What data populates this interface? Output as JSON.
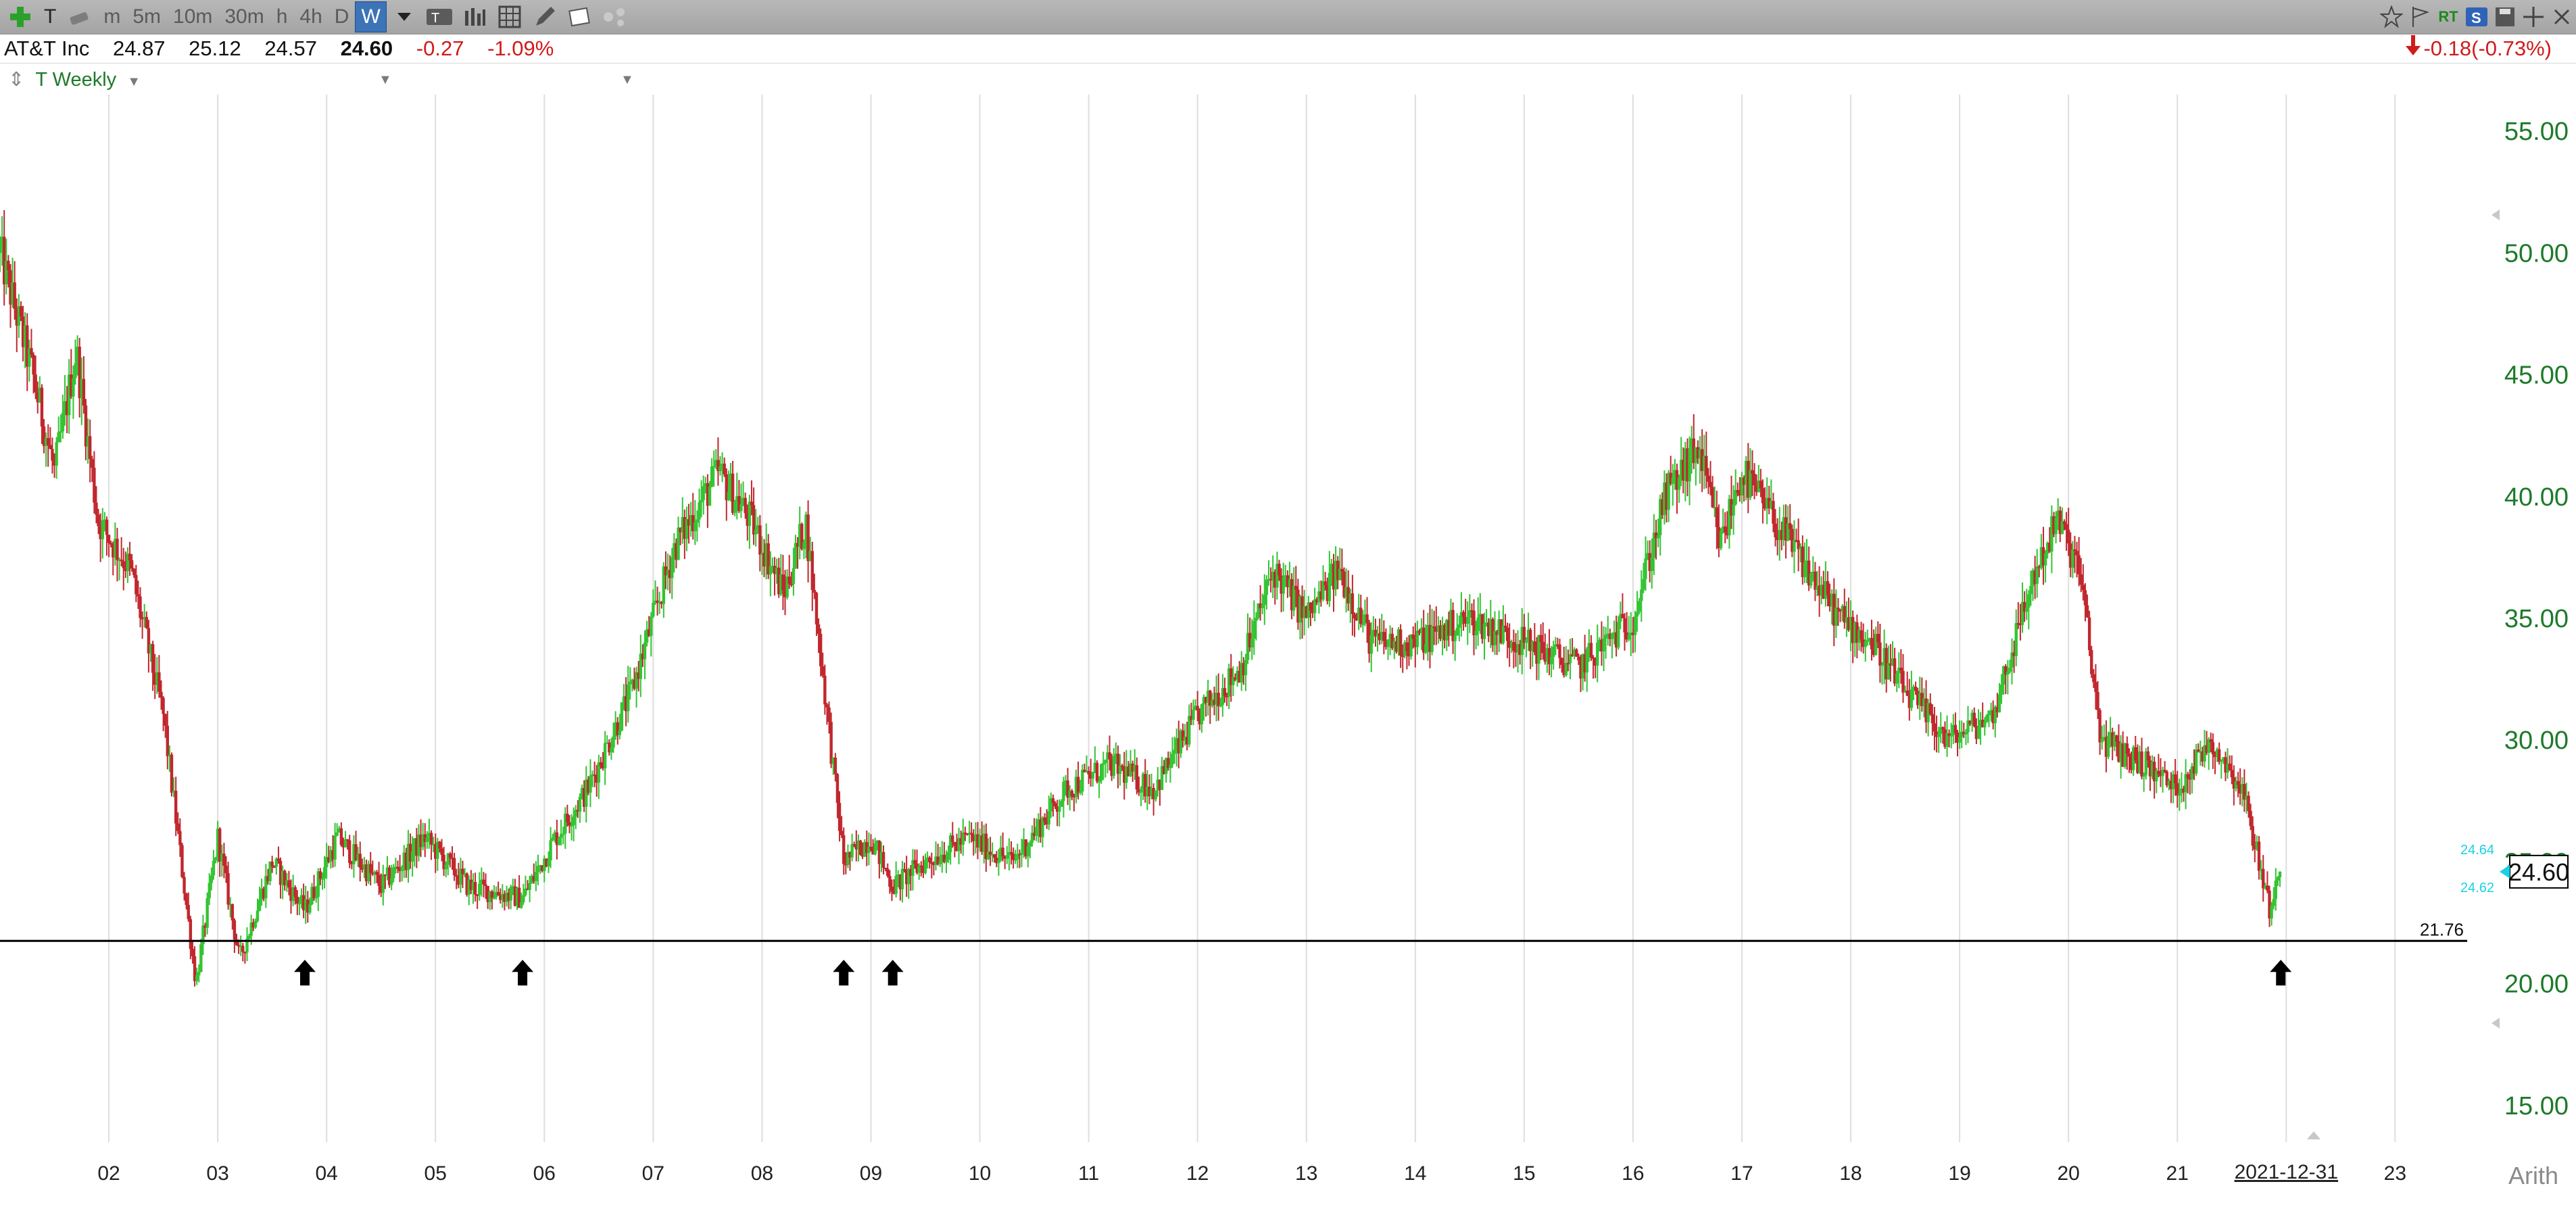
{
  "toolbar": {
    "add_icon": "plus-icon",
    "symbol_button": "T",
    "timeframes": [
      "m",
      "5m",
      "10m",
      "30m",
      "h",
      "4h",
      "D",
      "W"
    ],
    "active_timeframe": "W",
    "chart_type_label": "T",
    "right_rt": "RT",
    "right_s": "S"
  },
  "quote": {
    "name": "AT&T Inc",
    "open": "24.87",
    "high": "25.12",
    "low": "24.57",
    "last": "24.60",
    "change": "-0.27",
    "change_pct": "-1.09%",
    "after_change": "-0.18(-0.73%)"
  },
  "symbol_bar": {
    "label": "T Weekly"
  },
  "colors": {
    "up": "#33c433",
    "down": "#c0272d",
    "axis_label": "#1d7a2a",
    "support": "#000000",
    "last_box": "#000000",
    "bid_ask": "#19d0e6"
  },
  "chart_data": {
    "type": "candlestick",
    "title": "",
    "xlabel": "",
    "ylabel": "",
    "x_ticks": [
      "02",
      "03",
      "04",
      "05",
      "06",
      "07",
      "08",
      "09",
      "10",
      "11",
      "12",
      "13",
      "14",
      "15",
      "16",
      "17",
      "18",
      "19",
      "20",
      "21",
      "2021-12-31",
      "23"
    ],
    "y_ticks": [
      "15.00",
      "20.00",
      "25.00",
      "30.00",
      "35.00",
      "40.00",
      "45.00",
      "50.00",
      "55.00"
    ],
    "ylim": [
      13.5,
      56.5
    ],
    "xlim": [
      2001.0,
      2023.6
    ],
    "scale": "Arith",
    "grid": "vertical",
    "support_line": {
      "label": "21.76",
      "value": 21.76
    },
    "last_price": "24.60",
    "bid": "24.64",
    "ask": "24.62",
    "markers": [
      2003.8,
      2005.8,
      2008.75,
      2009.2,
      2021.95
    ],
    "close_path": [
      [
        2001.0,
        50.0
      ],
      [
        2001.3,
        45.0
      ],
      [
        2001.5,
        41.0
      ],
      [
        2001.7,
        46.0
      ],
      [
        2001.9,
        39.0
      ],
      [
        2002.2,
        37.0
      ],
      [
        2002.5,
        31.0
      ],
      [
        2002.8,
        20.0
      ],
      [
        2003.0,
        26.0
      ],
      [
        2003.2,
        21.0
      ],
      [
        2003.5,
        25.0
      ],
      [
        2003.8,
        23.0
      ],
      [
        2004.1,
        26.0
      ],
      [
        2004.5,
        24.0
      ],
      [
        2004.9,
        26.0
      ],
      [
        2005.3,
        24.0
      ],
      [
        2005.8,
        23.5
      ],
      [
        2006.1,
        26.0
      ],
      [
        2006.4,
        28.0
      ],
      [
        2006.8,
        32.0
      ],
      [
        2007.2,
        38.0
      ],
      [
        2007.6,
        41.0
      ],
      [
        2007.9,
        39.0
      ],
      [
        2008.2,
        36.0
      ],
      [
        2008.4,
        39.0
      ],
      [
        2008.75,
        25.0
      ],
      [
        2009.0,
        26.0
      ],
      [
        2009.2,
        24.0
      ],
      [
        2009.5,
        25.0
      ],
      [
        2009.9,
        26.0
      ],
      [
        2010.3,
        25.0
      ],
      [
        2010.8,
        28.0
      ],
      [
        2011.2,
        29.0
      ],
      [
        2011.6,
        28.0
      ],
      [
        2012.0,
        31.0
      ],
      [
        2012.4,
        33.0
      ],
      [
        2012.7,
        37.0
      ],
      [
        2013.0,
        35.0
      ],
      [
        2013.3,
        37.0
      ],
      [
        2013.6,
        34.0
      ],
      [
        2014.0,
        34.0
      ],
      [
        2014.5,
        35.0
      ],
      [
        2015.0,
        34.0
      ],
      [
        2015.5,
        33.0
      ],
      [
        2016.0,
        35.0
      ],
      [
        2016.3,
        40.0
      ],
      [
        2016.6,
        42.0
      ],
      [
        2016.8,
        38.0
      ],
      [
        2017.0,
        41.0
      ],
      [
        2017.3,
        39.0
      ],
      [
        2017.6,
        37.0
      ],
      [
        2017.9,
        35.0
      ],
      [
        2018.2,
        34.0
      ],
      [
        2018.5,
        32.0
      ],
      [
        2018.9,
        30.0
      ],
      [
        2019.3,
        31.0
      ],
      [
        2019.7,
        37.0
      ],
      [
        2019.9,
        39.0
      ],
      [
        2020.1,
        37.0
      ],
      [
        2020.3,
        30.0
      ],
      [
        2020.7,
        29.0
      ],
      [
        2021.0,
        28.0
      ],
      [
        2021.3,
        30.0
      ],
      [
        2021.6,
        28.0
      ],
      [
        2021.85,
        23.0
      ],
      [
        2021.95,
        24.6
      ]
    ]
  },
  "bottom": {
    "scale_label": "Arith"
  }
}
